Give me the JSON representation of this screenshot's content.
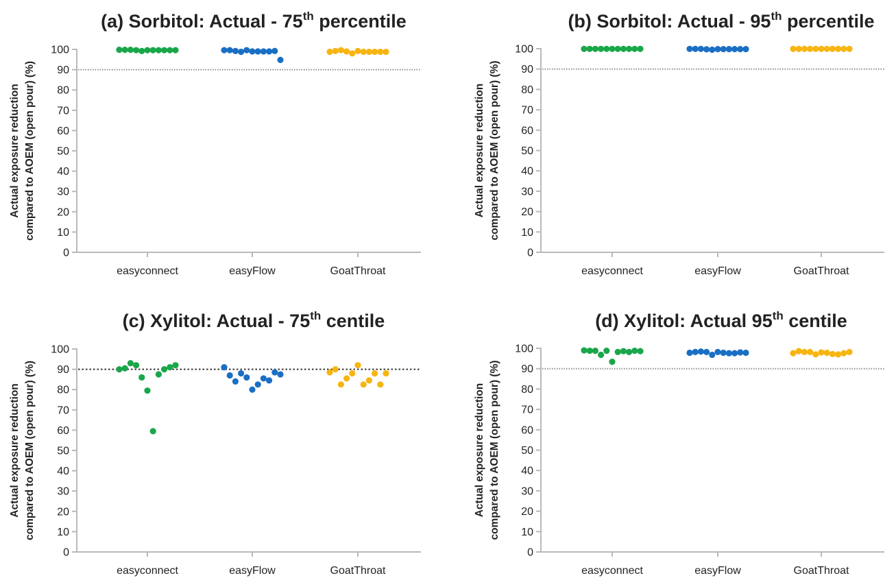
{
  "colors": {
    "easyconnect": "#1aa64a",
    "easyFlow": "#1a6fc4",
    "GoatThroat": "#f7b512",
    "axis": "#b9b9b9",
    "reference_line": "#333333"
  },
  "chart_data": [
    {
      "type": "scatter",
      "title_main": "(a) Sorbitol: Actual - 75",
      "title_sup": "th",
      "title_end": " percentile",
      "ylabel_line1": "Actual exposure reduction",
      "ylabel_line2": "compared to AOEM (open pour) (%)",
      "categories": [
        "easyconnect",
        "easyFlow",
        "GoatThroat"
      ],
      "ylim": [
        0,
        100
      ],
      "yticks": [
        0,
        10,
        20,
        30,
        40,
        50,
        60,
        70,
        80,
        90,
        100
      ],
      "reference_line": 90,
      "reference_style": "faint",
      "series": [
        {
          "name": "easyconnect",
          "values": [
            99.8,
            99.8,
            99.8,
            99.6,
            99.2,
            99.6,
            99.6,
            99.6,
            99.6,
            99.6,
            99.6
          ]
        },
        {
          "name": "easyFlow",
          "values": [
            99.6,
            99.6,
            99.2,
            98.8,
            99.6,
            99.0,
            99.0,
            99.0,
            99.0,
            99.2,
            94.8
          ]
        },
        {
          "name": "GoatThroat",
          "values": [
            98.8,
            99.2,
            99.6,
            99.0,
            98.0,
            99.2,
            98.8,
            98.8,
            98.8,
            98.8,
            98.8
          ]
        }
      ]
    },
    {
      "type": "scatter",
      "title_main": "(b) Sorbitol: Actual - 95",
      "title_sup": "th",
      "title_end": " percentile",
      "ylabel_line1": "Actual exposure reduction",
      "ylabel_line2": "compared to AOEM (open pour) (%)",
      "categories": [
        "easyconnect",
        "easyFlow",
        "GoatThroat"
      ],
      "ylim": [
        0,
        100
      ],
      "yticks": [
        0,
        10,
        20,
        30,
        40,
        50,
        60,
        70,
        80,
        90,
        100
      ],
      "reference_line": 90,
      "reference_style": "faint",
      "series": [
        {
          "name": "easyconnect",
          "values": [
            99.9,
            99.9,
            99.9,
            99.9,
            99.9,
            99.9,
            99.9,
            99.9,
            99.9,
            99.9,
            99.9
          ]
        },
        {
          "name": "easyFlow",
          "values": [
            99.9,
            99.9,
            99.9,
            99.7,
            99.5,
            99.8,
            99.8,
            99.8,
            99.8,
            99.8,
            99.8
          ]
        },
        {
          "name": "GoatThroat",
          "values": [
            99.9,
            99.9,
            99.9,
            99.9,
            99.9,
            99.9,
            99.9,
            99.9,
            99.9,
            99.9,
            99.9
          ]
        }
      ]
    },
    {
      "type": "scatter",
      "title_main": "(c) Xylitol: Actual - 75",
      "title_sup": "th",
      "title_end": " centile",
      "ylabel_line1": "Actual exposure reduction",
      "ylabel_line2": "compared to AOEM (open pour) (%)",
      "categories": [
        "easyconnect",
        "easyFlow",
        "GoatThroat"
      ],
      "ylim": [
        0,
        100
      ],
      "yticks": [
        0,
        10,
        20,
        30,
        40,
        50,
        60,
        70,
        80,
        90,
        100
      ],
      "reference_line": 90,
      "reference_style": "dark",
      "series": [
        {
          "name": "easyconnect",
          "values": [
            90.0,
            90.5,
            93.0,
            92.0,
            86.0,
            79.5,
            59.5,
            87.5,
            90.0,
            91.0,
            92.0
          ]
        },
        {
          "name": "easyFlow",
          "values": [
            91.0,
            87.0,
            84.0,
            88.0,
            86.0,
            80.0,
            82.5,
            85.5,
            84.5,
            88.5,
            87.5
          ]
        },
        {
          "name": "GoatThroat",
          "values": [
            88.5,
            90.0,
            82.5,
            85.5,
            88.0,
            92.0,
            82.5,
            84.5,
            88.0,
            82.5,
            88.0
          ]
        }
      ]
    },
    {
      "type": "scatter",
      "title_main": "(d) Xylitol: Actual 95",
      "title_sup": "th",
      "title_end": " centile",
      "ylabel_line1": "Actual exposure reduction",
      "ylabel_line2": "compared to AOEM (open pour) (%)",
      "categories": [
        "easyconnect",
        "easyFlow",
        "GoatThroat"
      ],
      "ylim": [
        0,
        100
      ],
      "yticks": [
        0,
        10,
        20,
        30,
        40,
        50,
        60,
        70,
        80,
        90,
        100
      ],
      "reference_line": 90,
      "reference_style": "faint",
      "series": [
        {
          "name": "easyconnect",
          "values": [
            99.0,
            98.8,
            98.8,
            96.8,
            98.8,
            93.4,
            98.2,
            98.6,
            98.2,
            98.8,
            98.6
          ]
        },
        {
          "name": "easyFlow",
          "values": [
            97.8,
            98.2,
            98.4,
            98.2,
            96.8,
            98.2,
            97.8,
            97.6,
            97.6,
            98.0,
            97.8
          ]
        },
        {
          "name": "GoatThroat",
          "values": [
            97.6,
            98.6,
            98.2,
            98.2,
            97.0,
            98.0,
            97.8,
            97.2,
            97.0,
            97.6,
            98.2
          ]
        }
      ]
    }
  ]
}
